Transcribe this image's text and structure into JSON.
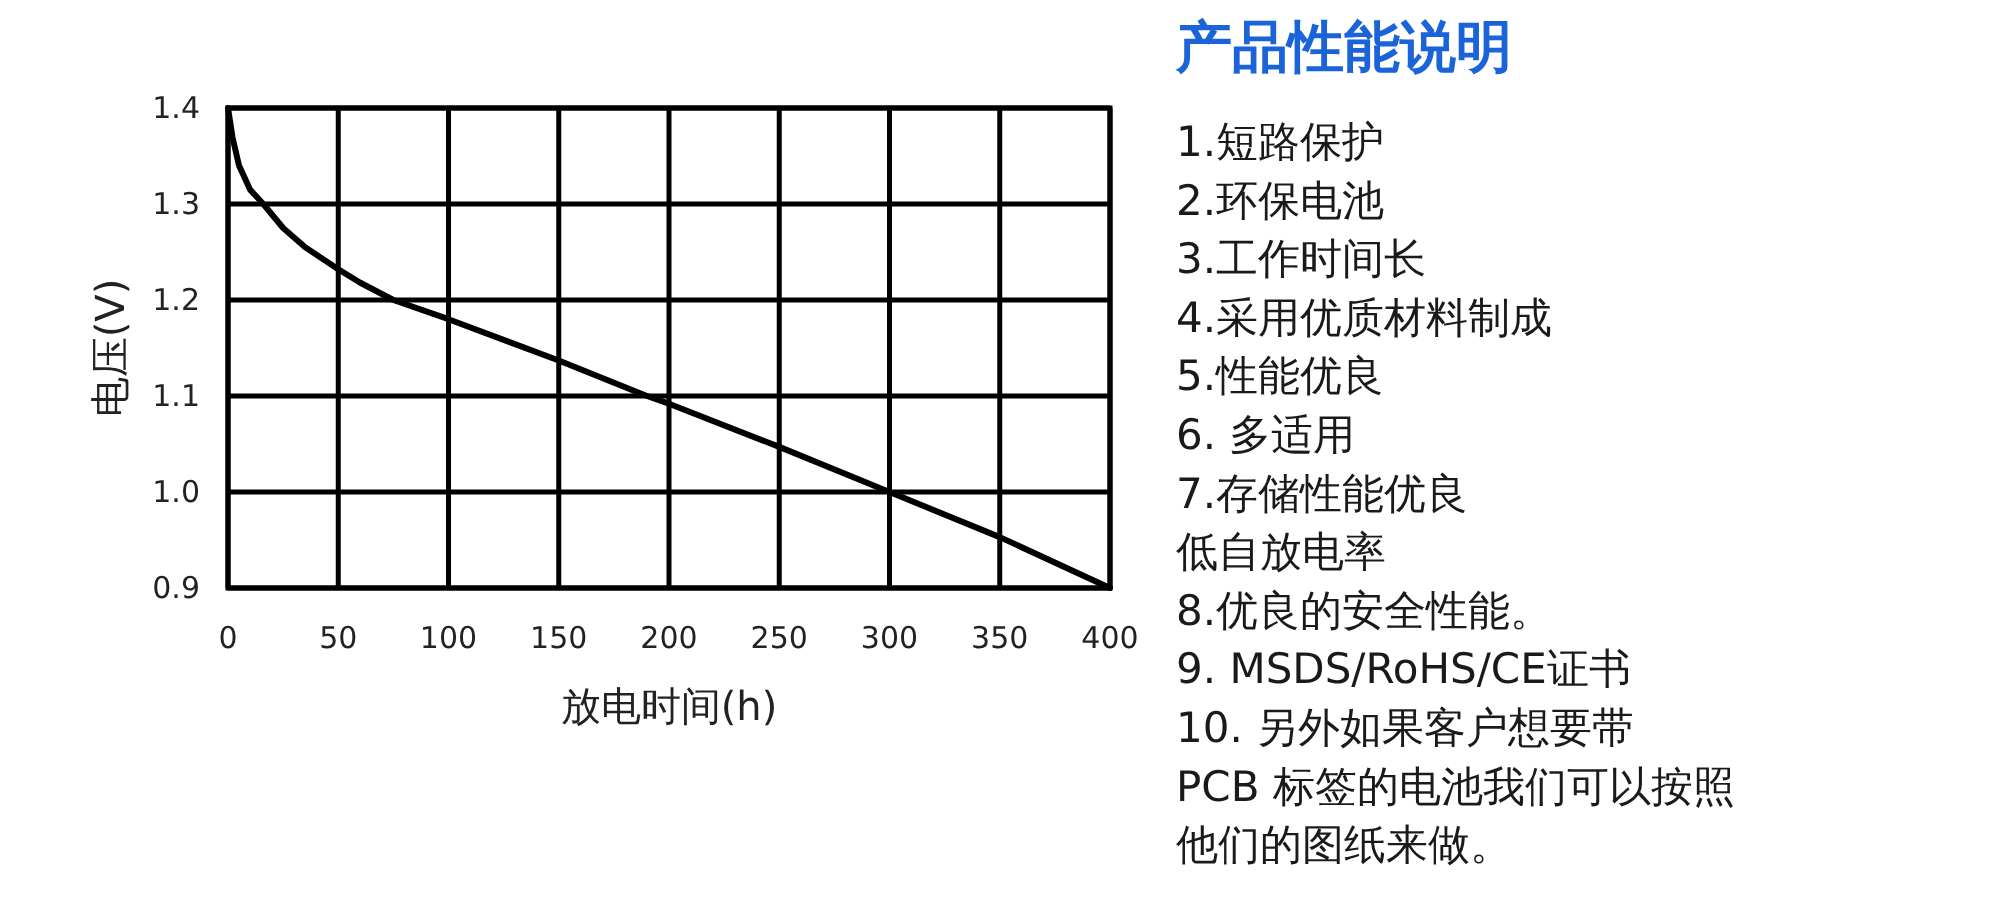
{
  "chart_data": [
    {
      "type": "line",
      "xlabel": "放电时间(h)",
      "ylabel": "电压(V)",
      "xlim": [
        0,
        400
      ],
      "ylim": [
        0.9,
        1.4
      ],
      "xticks": [
        0,
        50,
        100,
        150,
        200,
        250,
        300,
        350,
        400
      ],
      "yticks": [
        {
          "value": 0.9,
          "label": "0.9"
        },
        {
          "value": 1.0,
          "label": "1.0"
        },
        {
          "value": 1.1,
          "label": "1.1"
        },
        {
          "value": 1.2,
          "label": "1.2"
        },
        {
          "value": 1.3,
          "label": "1.3"
        },
        {
          "value": 1.4,
          "label": "1.4"
        }
      ],
      "grid": true,
      "series": [
        {
          "color": "#000000",
          "x": [
            0,
            2,
            5,
            10,
            16,
            25,
            35,
            50,
            60,
            75,
            100,
            150,
            190,
            200,
            250,
            300,
            350,
            400
          ],
          "values": [
            1.4,
            1.37,
            1.34,
            1.315,
            1.3,
            1.275,
            1.255,
            1.232,
            1.218,
            1.2,
            1.18,
            1.137,
            1.1,
            1.092,
            1.047,
            1.0,
            0.953,
            0.9
          ]
        }
      ]
    },
    {
      "type": "other",
      "title": "产品性能说明",
      "annotations": [
        "1.短路保护",
        "2.环保电池",
        "3.工作时间长",
        "4.采用优质材料制成",
        "5.性能优良",
        "6. 多适用",
        "7.存储性能优良",
        "低自放电率",
        "8.优良的安全性能。",
        "9. MSDS/RoHS/CE证书",
        "10. 另外如果客户想要带",
        "PCB 标签的电池我们可以按照",
        "他们的图纸来做。"
      ]
    }
  ]
}
